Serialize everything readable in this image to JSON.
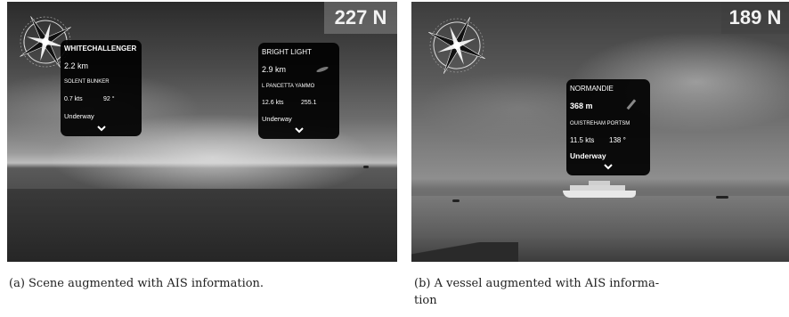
{
  "panel_a": {
    "heading": "227 N",
    "cards": [
      {
        "name": "WHITECHALLENGER",
        "distance": "2.2 km",
        "destination": "SOLENT BUNKER",
        "speed": "0.7 kts",
        "course": "92 °",
        "status": "Underway"
      },
      {
        "name": "BRIGHT LIGHT",
        "distance": "2.9 km",
        "destination": "L PANCETTA YAMMO",
        "speed": "12.6 kts",
        "course": "255.1",
        "status": "Underway"
      }
    ],
    "caption": "(a) Scene augmented with AIS information."
  },
  "panel_b": {
    "heading": "189 N",
    "card": {
      "name": "NORMANDIE",
      "distance": "368 m",
      "destination": "OUISTREHAM PORTSM",
      "speed": "11.5 kts",
      "course": "138 °",
      "status": "Underway"
    },
    "caption_line1": "(b) A vessel augmented with AIS informa-",
    "caption_line2": "tion"
  },
  "icons": {
    "compass": "compass-rose-icon",
    "expand": "chevron-down-icon",
    "pointer": "pencil-pointer-icon"
  }
}
